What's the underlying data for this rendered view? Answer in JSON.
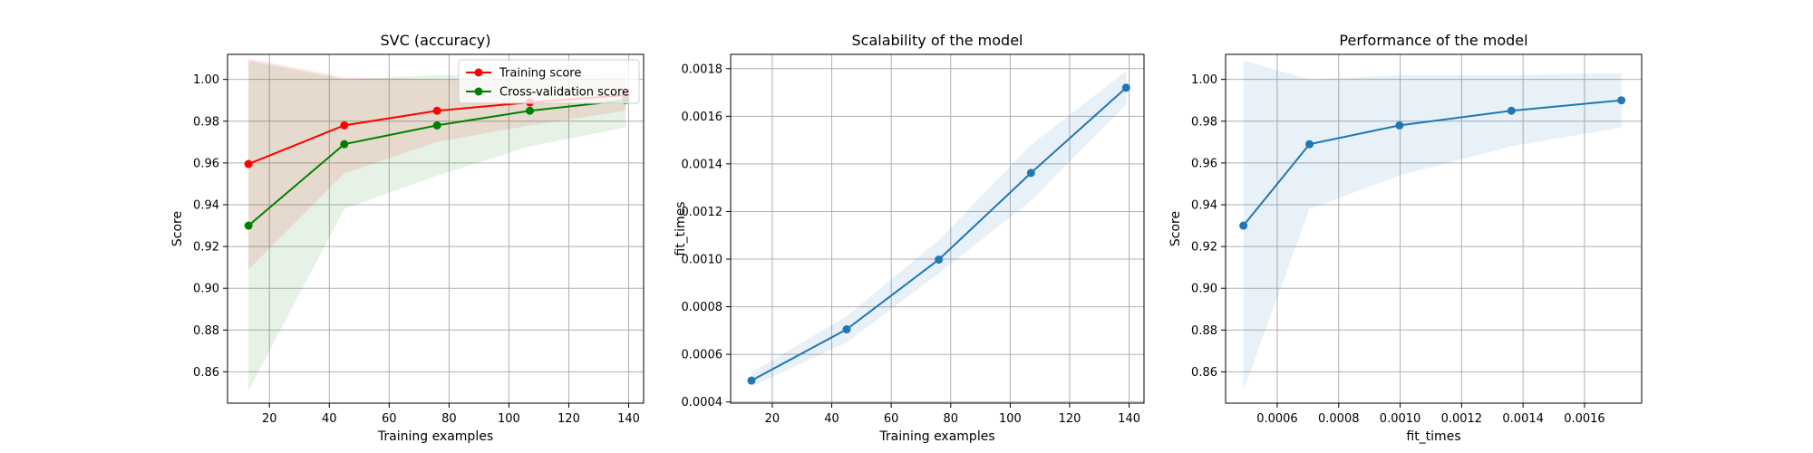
{
  "colors": {
    "training": "#ff0000",
    "cross_validation": "#008000",
    "model": "#1f77b4"
  },
  "chart_data": [
    {
      "type": "line",
      "title": "SVC (accuracy)",
      "xlabel": "Training examples",
      "ylabel": "Score",
      "xlim": [
        6,
        145
      ],
      "ylim": [
        0.845,
        1.012
      ],
      "x_ticks": [
        20,
        40,
        60,
        80,
        100,
        120,
        140
      ],
      "x_tick_labels": [
        "20",
        "40",
        "60",
        "80",
        "100",
        "120",
        "140"
      ],
      "y_ticks": [
        0.86,
        0.88,
        0.9,
        0.92,
        0.94,
        0.96,
        0.98,
        1.0
      ],
      "y_tick_labels": [
        "0.86",
        "0.88",
        "0.90",
        "0.92",
        "0.94",
        "0.96",
        "0.98",
        "1.00"
      ],
      "grid": true,
      "legend": "top-right",
      "x": [
        13,
        45,
        76,
        107,
        139
      ],
      "series": [
        {
          "name": "Training score",
          "color": "#ff0000",
          "values": [
            0.9595,
            0.978,
            0.985,
            0.989,
            0.9925
          ],
          "band_low": [
            0.909,
            0.955,
            0.97,
            0.978,
            0.985
          ],
          "band_high": [
            1.01,
            1.001,
            1.0,
            1.0,
            1.0
          ]
        },
        {
          "name": "Cross-validation score",
          "color": "#008000",
          "values": [
            0.93,
            0.969,
            0.978,
            0.985,
            0.99
          ],
          "band_low": [
            0.851,
            0.938,
            0.954,
            0.968,
            0.977
          ],
          "band_high": [
            1.009,
            1.0,
            1.002,
            1.002,
            1.003
          ]
        }
      ]
    },
    {
      "type": "line",
      "title": "Scalability of the model",
      "xlabel": "Training examples",
      "ylabel": "fit_times",
      "xlim": [
        6,
        145
      ],
      "ylim": [
        0.000395,
        0.00186
      ],
      "x_ticks": [
        20,
        40,
        60,
        80,
        100,
        120,
        140
      ],
      "x_tick_labels": [
        "20",
        "40",
        "60",
        "80",
        "100",
        "120",
        "140"
      ],
      "y_ticks": [
        0.0004,
        0.0006,
        0.0008,
        0.001,
        0.0012,
        0.0014,
        0.0016,
        0.0018
      ],
      "y_tick_labels": [
        "0.0004",
        "0.0006",
        "0.0008",
        "0.0010",
        "0.0012",
        "0.0014",
        "0.0016",
        "0.0018"
      ],
      "grid": true,
      "x": [
        13,
        45,
        76,
        107,
        139
      ],
      "series": [
        {
          "color": "#1f77b4",
          "values": [
            0.00049,
            0.000705,
            0.000998,
            0.001362,
            0.00172
          ],
          "band_low": [
            0.000465,
            0.00065,
            0.00094,
            0.001245,
            0.00165
          ],
          "band_high": [
            0.000525,
            0.00076,
            0.00108,
            0.00148,
            0.00179
          ]
        }
      ]
    },
    {
      "type": "line",
      "title": "Performance of the model",
      "xlabel": "fit_times",
      "ylabel": "Score",
      "xlim": [
        0.000432,
        0.001786
      ],
      "ylim": [
        0.845,
        1.012
      ],
      "x_ticks": [
        0.0006,
        0.0008,
        0.001,
        0.0012,
        0.0014,
        0.0016
      ],
      "x_tick_labels": [
        "0.0006",
        "0.0008",
        "0.0010",
        "0.0012",
        "0.0014",
        "0.0016"
      ],
      "y_ticks": [
        0.86,
        0.88,
        0.9,
        0.92,
        0.94,
        0.96,
        0.98,
        1.0
      ],
      "y_tick_labels": [
        "0.86",
        "0.88",
        "0.90",
        "0.92",
        "0.94",
        "0.96",
        "0.98",
        "1.00"
      ],
      "grid": true,
      "x": [
        0.00049,
        0.000705,
        0.000998,
        0.001362,
        0.00172
      ],
      "series": [
        {
          "color": "#1f77b4",
          "values": [
            0.93,
            0.969,
            0.978,
            0.985,
            0.99
          ],
          "band_low": [
            0.851,
            0.938,
            0.954,
            0.968,
            0.977
          ],
          "band_high": [
            1.009,
            1.0,
            1.002,
            1.002,
            1.003
          ]
        }
      ]
    }
  ]
}
